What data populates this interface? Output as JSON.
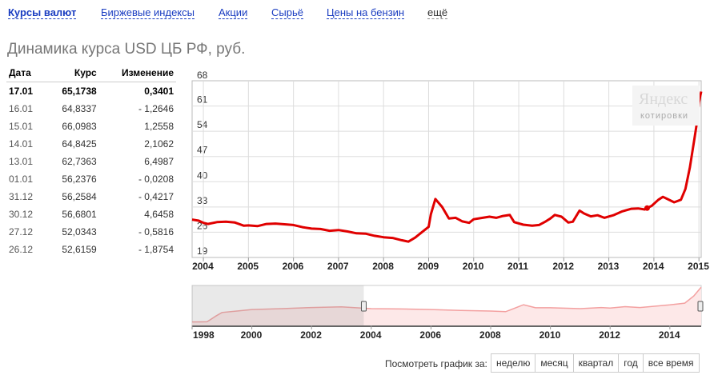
{
  "tabs": [
    {
      "label": "Курсы валют",
      "active": true
    },
    {
      "label": "Биржевые индексы"
    },
    {
      "label": "Акции"
    },
    {
      "label": "Сырьё"
    },
    {
      "label": "Цены на бензин"
    },
    {
      "label": "ещё"
    }
  ],
  "page_title": "Динамика курса USD ЦБ РФ, руб.",
  "table": {
    "headers": [
      "Дата",
      "Курс",
      "Изменение"
    ],
    "rows": [
      {
        "date": "17.01",
        "rate": "65,1738",
        "change": "0,3401"
      },
      {
        "date": "16.01",
        "rate": "64,8337",
        "change": "- 1,2646"
      },
      {
        "date": "15.01",
        "rate": "66,0983",
        "change": "1,2558"
      },
      {
        "date": "14.01",
        "rate": "64,8425",
        "change": "2,1062"
      },
      {
        "date": "13.01",
        "rate": "62,7363",
        "change": "6,4987"
      },
      {
        "date": "01.01",
        "rate": "56,2376",
        "change": "- 0,0208"
      },
      {
        "date": "31.12",
        "rate": "56,2584",
        "change": "- 0,4217"
      },
      {
        "date": "30.12",
        "rate": "56,6801",
        "change": "4,6458"
      },
      {
        "date": "27.12",
        "rate": "52,0343",
        "change": "- 0,5816"
      },
      {
        "date": "26.12",
        "rate": "52,6159",
        "change": "- 1,8754"
      }
    ]
  },
  "logo": {
    "brand": "Яндекс",
    "sub": "котировки"
  },
  "colors": {
    "line": "#e00000",
    "link": "#1a3dc1",
    "nav_fill": "#fde8e8",
    "nav_shade": "#e8e8e8"
  },
  "chart_data": [
    {
      "type": "line",
      "title": "",
      "ylim": [
        19,
        68
      ],
      "yticks": [
        "19",
        "26",
        "33",
        "40",
        "47",
        "54",
        "61",
        "68"
      ],
      "xticks": [
        "2004",
        "2005",
        "2006",
        "2007",
        "2008",
        "2009",
        "2010",
        "2011",
        "2012",
        "2013",
        "2014",
        "2015"
      ],
      "grid": true,
      "series": [
        {
          "x": [
            2003.75,
            2003.9,
            2004.0,
            2004.1,
            2004.3,
            2004.5,
            2004.7,
            2004.9,
            2005.0,
            2005.2,
            2005.4,
            2005.6,
            2005.8,
            2006.0,
            2006.2,
            2006.4,
            2006.6,
            2006.8,
            2007.0,
            2007.2,
            2007.4,
            2007.6,
            2007.8,
            2008.0,
            2008.2,
            2008.4,
            2008.55,
            2008.7,
            2008.85,
            2009.0,
            2009.05,
            2009.15,
            2009.3,
            2009.45,
            2009.6,
            2009.75,
            2009.9,
            2010.0,
            2010.2,
            2010.35,
            2010.5,
            2010.65,
            2010.8,
            2010.9,
            2011.1,
            2011.3,
            2011.45,
            2011.6,
            2011.7,
            2011.8,
            2011.95,
            2012.1,
            2012.2,
            2012.35,
            2012.45,
            2012.6,
            2012.75,
            2012.9,
            2013.1,
            2013.3,
            2013.5,
            2013.65,
            2013.8,
            2013.85,
            2013.95,
            2014.1,
            2014.2,
            2014.3,
            2014.45,
            2014.6,
            2014.7,
            2014.8,
            2014.9,
            2014.95,
            2015.0,
            2015.05
          ],
          "y": [
            29.5,
            29.2,
            28.6,
            28.3,
            28.8,
            28.9,
            28.7,
            27.8,
            27.9,
            27.7,
            28.3,
            28.4,
            28.2,
            28.0,
            27.4,
            27.0,
            26.9,
            26.4,
            26.6,
            26.2,
            25.7,
            25.6,
            25.0,
            24.6,
            24.4,
            23.8,
            23.4,
            24.5,
            26.0,
            27.5,
            31.0,
            35.2,
            33.0,
            29.8,
            30.0,
            29.0,
            28.6,
            29.6,
            30.0,
            30.3,
            30.0,
            30.5,
            30.8,
            28.8,
            28.1,
            27.8,
            28.0,
            29.0,
            29.8,
            30.8,
            30.3,
            28.7,
            28.9,
            32.0,
            31.2,
            30.4,
            30.7,
            30.0,
            30.7,
            31.8,
            32.5,
            32.6,
            32.3,
            32.7,
            33.3,
            35.0,
            35.8,
            35.2,
            34.3,
            35.0,
            38.0,
            44.0,
            52.0,
            56.0,
            62.0,
            65.0
          ]
        }
      ]
    },
    {
      "type": "area",
      "title": "",
      "xticks": [
        "1998",
        "2000",
        "2002",
        "2004",
        "2006",
        "2008",
        "2010",
        "2012",
        "2014"
      ],
      "selection": [
        2003.75,
        2015.05
      ],
      "series": [
        {
          "x": [
            1998.0,
            1998.5,
            1998.6,
            1998.8,
            1999.0,
            1999.5,
            2000.0,
            2001.0,
            2002.0,
            2003.0,
            2004.0,
            2005.0,
            2006.0,
            2007.0,
            2008.0,
            2008.5,
            2009.1,
            2009.5,
            2010.0,
            2011.0,
            2011.7,
            2012.0,
            2012.5,
            2013.0,
            2014.0,
            2014.5,
            2014.8,
            2015.0,
            2015.05
          ],
          "y": [
            6.0,
            6.2,
            9.5,
            16.0,
            22.0,
            24.5,
            27.0,
            28.5,
            30.5,
            31.5,
            28.5,
            28.0,
            27.0,
            25.5,
            24.5,
            23.4,
            35.2,
            30.0,
            30.0,
            28.5,
            30.5,
            29.5,
            32.0,
            30.5,
            35.0,
            38.0,
            50.0,
            62.0,
            65.0
          ]
        }
      ]
    }
  ],
  "period_label": "Посмотреть график за:",
  "periods": [
    "неделю",
    "месяц",
    "квартал",
    "год",
    "все время"
  ]
}
